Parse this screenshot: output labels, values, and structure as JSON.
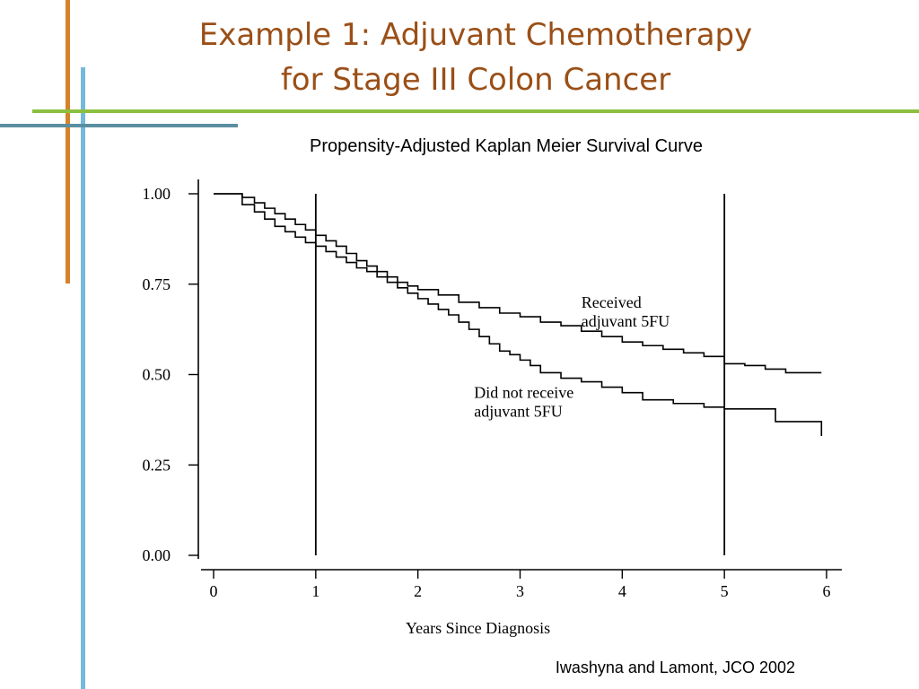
{
  "slide": {
    "title_line1": "Example 1: Adjuvant Chemotherapy",
    "title_line2": "for Stage III Colon Cancer",
    "title_color": "#9a4f17",
    "subtitle": "Propensity-Adjusted Kaplan Meier Survival Curve",
    "citation": "Iwashyna and Lamont, JCO 2002",
    "accent_orange": "#d5822a",
    "accent_blue": "#74b9dc",
    "accent_teal": "#5a8fa0",
    "accent_green": "#8cbf3f"
  },
  "chart_data": {
    "type": "line",
    "xlabel": "Years Since Diagnosis",
    "ylabel": "",
    "xlim": [
      0,
      6
    ],
    "ylim": [
      0,
      1
    ],
    "x_ticks": [
      0,
      1,
      2,
      3,
      4,
      5,
      6
    ],
    "x_tick_labels": [
      "0",
      "1",
      "2",
      "3",
      "4",
      "5",
      "6"
    ],
    "y_ticks": [
      0,
      0.25,
      0.5,
      0.75,
      1.0
    ],
    "y_tick_labels": [
      "0.00",
      "0.25",
      "0.50",
      "0.75",
      "1.00"
    ],
    "reference_lines_x": [
      1,
      5
    ],
    "series": [
      {
        "name": "Received adjuvant 5FU",
        "label_lines": [
          "Received",
          "adjuvant 5FU"
        ],
        "label_at": [
          3.6,
          0.685
        ],
        "step": true,
        "x": [
          0,
          0.28,
          0.4,
          0.5,
          0.6,
          0.7,
          0.8,
          0.9,
          1.0,
          1.1,
          1.2,
          1.3,
          1.4,
          1.5,
          1.6,
          1.7,
          1.8,
          1.9,
          2.0,
          2.2,
          2.4,
          2.6,
          2.8,
          3.0,
          3.2,
          3.4,
          3.6,
          3.8,
          4.0,
          4.2,
          4.4,
          4.6,
          4.8,
          5.0,
          5.2,
          5.4,
          5.6,
          5.95
        ],
        "y": [
          1.0,
          0.99,
          0.975,
          0.96,
          0.945,
          0.93,
          0.915,
          0.9,
          0.885,
          0.87,
          0.855,
          0.835,
          0.815,
          0.8,
          0.785,
          0.77,
          0.755,
          0.745,
          0.735,
          0.72,
          0.7,
          0.685,
          0.67,
          0.66,
          0.645,
          0.635,
          0.62,
          0.605,
          0.59,
          0.58,
          0.57,
          0.56,
          0.55,
          0.53,
          0.525,
          0.515,
          0.505,
          0.505
        ]
      },
      {
        "name": "Did not receive adjuvant 5FU",
        "label_lines": [
          "Did not receive",
          "adjuvant 5FU"
        ],
        "label_at": [
          2.55,
          0.435
        ],
        "step": true,
        "x": [
          0,
          0.28,
          0.4,
          0.5,
          0.6,
          0.7,
          0.8,
          0.9,
          1.0,
          1.1,
          1.2,
          1.3,
          1.4,
          1.5,
          1.6,
          1.7,
          1.8,
          1.9,
          2.0,
          2.1,
          2.2,
          2.3,
          2.4,
          2.5,
          2.6,
          2.7,
          2.8,
          2.9,
          3.0,
          3.1,
          3.2,
          3.4,
          3.6,
          3.8,
          4.0,
          4.2,
          4.5,
          4.8,
          5.0,
          5.2,
          5.5,
          5.95
        ],
        "y": [
          1.0,
          0.97,
          0.95,
          0.93,
          0.91,
          0.895,
          0.88,
          0.865,
          0.855,
          0.84,
          0.825,
          0.81,
          0.795,
          0.785,
          0.77,
          0.755,
          0.74,
          0.725,
          0.71,
          0.695,
          0.68,
          0.665,
          0.645,
          0.625,
          0.605,
          0.585,
          0.565,
          0.555,
          0.54,
          0.525,
          0.505,
          0.49,
          0.48,
          0.465,
          0.45,
          0.43,
          0.42,
          0.41,
          0.405,
          0.405,
          0.37,
          0.33
        ]
      }
    ]
  }
}
